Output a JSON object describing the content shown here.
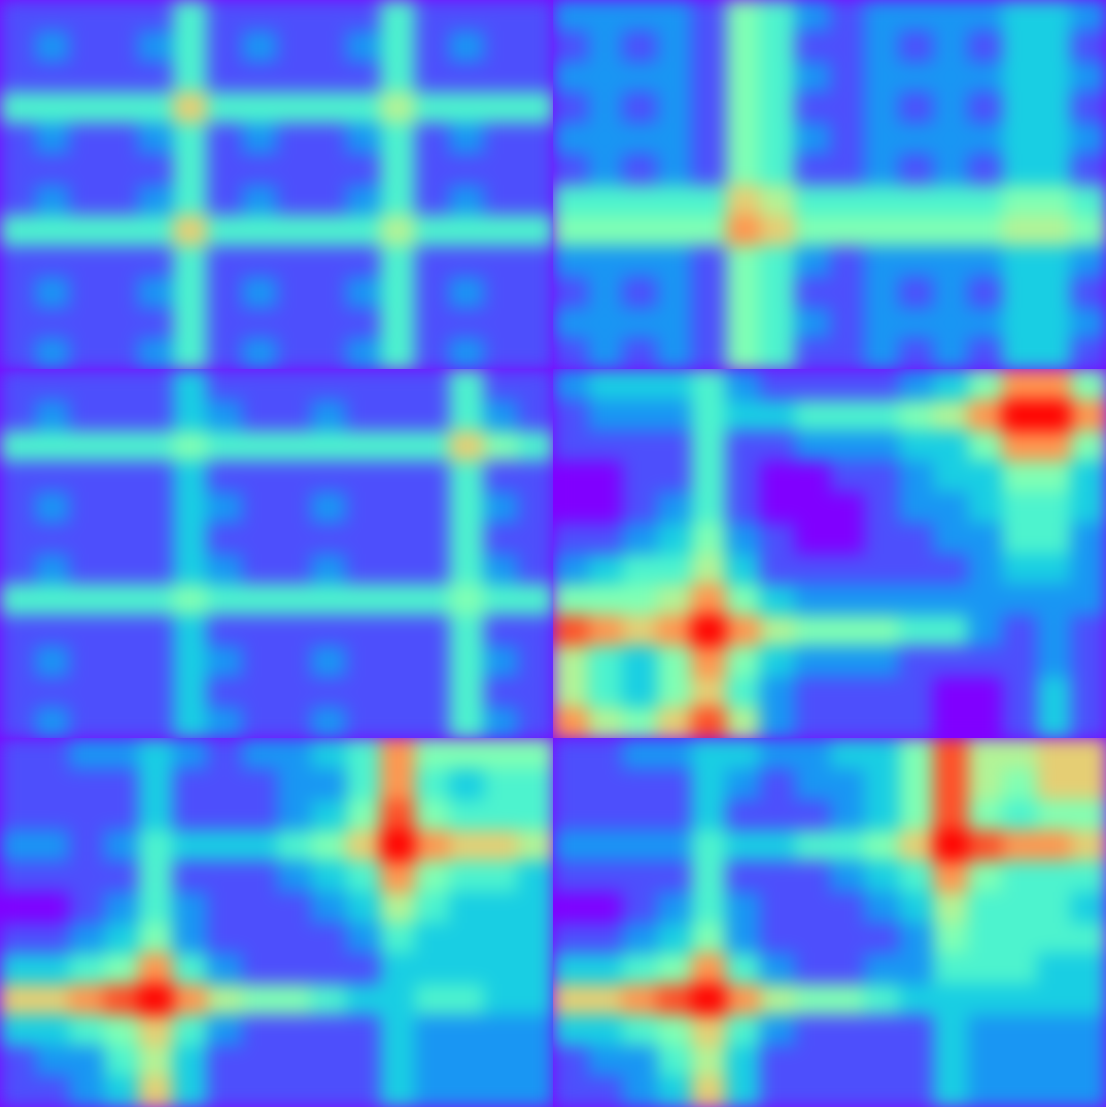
{
  "chart_data": [
    {
      "type": "heatmap",
      "tick_labels": false,
      "zlim": [
        0,
        10
      ],
      "values": [
        [
          1,
          1,
          1,
          1,
          1,
          4,
          1,
          1,
          1,
          1,
          1,
          4,
          1,
          1,
          1,
          1
        ],
        [
          1,
          2,
          1,
          1,
          2,
          4,
          1,
          2,
          1,
          1,
          2,
          4,
          1,
          2,
          1,
          1
        ],
        [
          1,
          1,
          1,
          1,
          1,
          4,
          1,
          1,
          1,
          1,
          1,
          4,
          1,
          1,
          1,
          1
        ],
        [
          4,
          4,
          4,
          4,
          4,
          7,
          4,
          4,
          4,
          4,
          4,
          6,
          4,
          4,
          4,
          4
        ],
        [
          1,
          2,
          1,
          1,
          2,
          4,
          1,
          2,
          1,
          1,
          2,
          4,
          1,
          2,
          1,
          1
        ],
        [
          1,
          1,
          1,
          1,
          1,
          4,
          1,
          1,
          1,
          1,
          1,
          4,
          1,
          1,
          1,
          1
        ],
        [
          1,
          2,
          1,
          1,
          2,
          4,
          1,
          2,
          1,
          1,
          2,
          4,
          1,
          2,
          1,
          1
        ],
        [
          4,
          4,
          4,
          4,
          4,
          7,
          4,
          4,
          4,
          4,
          4,
          6,
          4,
          4,
          4,
          4
        ],
        [
          1,
          1,
          1,
          1,
          1,
          4,
          1,
          1,
          1,
          1,
          1,
          4,
          1,
          1,
          1,
          1
        ],
        [
          1,
          2,
          1,
          1,
          2,
          4,
          1,
          2,
          1,
          1,
          2,
          4,
          1,
          2,
          1,
          1
        ],
        [
          1,
          1,
          1,
          1,
          1,
          4,
          1,
          1,
          1,
          1,
          1,
          4,
          1,
          1,
          1,
          1
        ],
        [
          1,
          2,
          1,
          1,
          2,
          4,
          1,
          2,
          1,
          1,
          2,
          4,
          1,
          2,
          1,
          1
        ]
      ]
    },
    {
      "type": "heatmap",
      "tick_labels": false,
      "zlim": [
        0,
        10
      ],
      "values": [
        [
          2,
          2,
          2,
          2,
          1,
          5,
          4,
          2,
          1,
          2,
          2,
          2,
          2,
          3,
          3,
          2
        ],
        [
          1,
          2,
          1,
          2,
          1,
          5,
          4,
          1,
          1,
          2,
          1,
          2,
          1,
          3,
          3,
          1
        ],
        [
          2,
          2,
          2,
          2,
          1,
          5,
          4,
          2,
          1,
          2,
          2,
          2,
          2,
          3,
          3,
          2
        ],
        [
          1,
          2,
          1,
          2,
          1,
          5,
          4,
          1,
          1,
          2,
          1,
          2,
          1,
          3,
          3,
          1
        ],
        [
          2,
          2,
          2,
          2,
          1,
          5,
          4,
          2,
          1,
          2,
          2,
          2,
          2,
          3,
          3,
          2
        ],
        [
          1,
          2,
          1,
          2,
          1,
          5,
          4,
          1,
          1,
          2,
          1,
          2,
          1,
          3,
          3,
          1
        ],
        [
          4,
          4,
          4,
          4,
          4,
          7,
          6,
          4,
          4,
          4,
          4,
          4,
          4,
          5,
          5,
          4
        ],
        [
          5,
          5,
          5,
          5,
          5,
          8,
          7,
          5,
          5,
          5,
          5,
          5,
          5,
          6,
          6,
          5
        ],
        [
          2,
          2,
          2,
          2,
          1,
          5,
          4,
          2,
          1,
          2,
          2,
          2,
          2,
          3,
          3,
          2
        ],
        [
          1,
          2,
          1,
          2,
          1,
          5,
          4,
          1,
          1,
          2,
          1,
          2,
          1,
          3,
          3,
          1
        ],
        [
          2,
          2,
          2,
          2,
          1,
          5,
          4,
          2,
          1,
          2,
          2,
          2,
          2,
          3,
          3,
          2
        ],
        [
          1,
          2,
          1,
          2,
          1,
          5,
          4,
          1,
          1,
          2,
          1,
          2,
          1,
          3,
          3,
          1
        ]
      ]
    },
    {
      "type": "heatmap",
      "tick_labels": false,
      "zlim": [
        0,
        10
      ],
      "values": [
        [
          1,
          1,
          1,
          1,
          1,
          3,
          1,
          1,
          1,
          1,
          1,
          1,
          1,
          4,
          1,
          1
        ],
        [
          1,
          2,
          1,
          1,
          1,
          3,
          2,
          1,
          1,
          2,
          1,
          1,
          1,
          4,
          2,
          1
        ],
        [
          4,
          4,
          4,
          4,
          4,
          5,
          4,
          4,
          4,
          4,
          4,
          4,
          4,
          7,
          5,
          4
        ],
        [
          1,
          1,
          1,
          1,
          1,
          3,
          1,
          1,
          1,
          1,
          1,
          1,
          1,
          4,
          1,
          1
        ],
        [
          1,
          2,
          1,
          1,
          1,
          3,
          2,
          1,
          1,
          2,
          1,
          1,
          1,
          4,
          2,
          1
        ],
        [
          1,
          1,
          1,
          1,
          1,
          3,
          1,
          1,
          1,
          1,
          1,
          1,
          1,
          4,
          1,
          1
        ],
        [
          1,
          2,
          1,
          1,
          1,
          3,
          2,
          1,
          1,
          2,
          1,
          1,
          1,
          4,
          2,
          1
        ],
        [
          4,
          4,
          4,
          4,
          4,
          5,
          4,
          4,
          4,
          4,
          4,
          4,
          4,
          5,
          4,
          4
        ],
        [
          1,
          1,
          1,
          1,
          1,
          3,
          1,
          1,
          1,
          1,
          1,
          1,
          1,
          4,
          1,
          1
        ],
        [
          1,
          2,
          1,
          1,
          1,
          3,
          2,
          1,
          1,
          2,
          1,
          1,
          1,
          4,
          2,
          1
        ],
        [
          1,
          1,
          1,
          1,
          1,
          3,
          1,
          1,
          1,
          1,
          1,
          1,
          1,
          4,
          1,
          1
        ],
        [
          1,
          2,
          1,
          1,
          1,
          3,
          2,
          1,
          1,
          2,
          1,
          1,
          1,
          4,
          2,
          1
        ]
      ]
    },
    {
      "type": "heatmap",
      "tick_labels": false,
      "zlim": [
        0,
        10
      ],
      "values": [
        [
          2,
          3,
          3,
          3,
          4,
          2,
          1,
          1,
          1,
          1,
          2,
          3,
          5,
          8,
          8,
          5
        ],
        [
          1,
          2,
          2,
          2,
          4,
          3,
          3,
          4,
          4,
          4,
          5,
          6,
          8,
          10,
          10,
          8
        ],
        [
          1,
          1,
          1,
          1,
          4,
          1,
          1,
          2,
          2,
          2,
          3,
          3,
          5,
          8,
          8,
          5
        ],
        [
          0,
          0,
          1,
          1,
          4,
          1,
          0,
          0,
          1,
          1,
          2,
          3,
          3,
          5,
          5,
          3
        ],
        [
          0,
          0,
          1,
          2,
          4,
          1,
          0,
          0,
          0,
          1,
          2,
          2,
          3,
          4,
          4,
          3
        ],
        [
          1,
          1,
          2,
          3,
          5,
          2,
          1,
          0,
          0,
          1,
          1,
          2,
          2,
          4,
          4,
          2
        ],
        [
          2,
          3,
          4,
          4,
          6,
          3,
          1,
          1,
          1,
          1,
          1,
          1,
          2,
          3,
          3,
          2
        ],
        [
          5,
          5,
          5,
          6,
          8,
          5,
          3,
          2,
          2,
          2,
          2,
          2,
          2,
          2,
          2,
          2
        ],
        [
          9,
          8,
          7,
          8,
          10,
          8,
          6,
          5,
          5,
          5,
          4,
          4,
          2,
          1,
          2,
          1
        ],
        [
          6,
          4,
          3,
          5,
          8,
          5,
          3,
          2,
          2,
          2,
          1,
          1,
          1,
          1,
          2,
          1
        ],
        [
          6,
          4,
          3,
          5,
          7,
          4,
          2,
          1,
          1,
          1,
          1,
          0,
          0,
          1,
          3,
          1
        ],
        [
          8,
          6,
          5,
          7,
          9,
          6,
          2,
          1,
          1,
          1,
          1,
          0,
          0,
          1,
          3,
          1
        ]
      ]
    },
    {
      "type": "heatmap",
      "tick_labels": false,
      "zlim": [
        0,
        10
      ],
      "values": [
        [
          1,
          1,
          2,
          2,
          3,
          2,
          1,
          2,
          2,
          3,
          4,
          8,
          5,
          5,
          5,
          5
        ],
        [
          1,
          1,
          1,
          1,
          3,
          1,
          1,
          1,
          2,
          2,
          4,
          8,
          4,
          3,
          4,
          4
        ],
        [
          1,
          1,
          1,
          1,
          3,
          1,
          1,
          1,
          2,
          3,
          5,
          9,
          5,
          4,
          4,
          4
        ],
        [
          2,
          2,
          1,
          2,
          4,
          3,
          3,
          3,
          4,
          5,
          7,
          10,
          8,
          7,
          7,
          6
        ],
        [
          1,
          1,
          1,
          1,
          4,
          1,
          1,
          1,
          2,
          3,
          4,
          8,
          5,
          4,
          4,
          3
        ],
        [
          0,
          0,
          1,
          2,
          4,
          2,
          1,
          1,
          1,
          2,
          3,
          6,
          4,
          3,
          3,
          3
        ],
        [
          1,
          1,
          2,
          3,
          5,
          2,
          1,
          1,
          1,
          1,
          2,
          4,
          3,
          3,
          3,
          3
        ],
        [
          3,
          3,
          4,
          5,
          8,
          4,
          2,
          1,
          1,
          1,
          1,
          3,
          3,
          3,
          3,
          3
        ],
        [
          7,
          7,
          8,
          9,
          10,
          8,
          6,
          5,
          5,
          4,
          3,
          3,
          4,
          4,
          3,
          3
        ],
        [
          3,
          3,
          4,
          5,
          7,
          4,
          2,
          1,
          1,
          1,
          1,
          3,
          2,
          2,
          2,
          2
        ],
        [
          1,
          2,
          2,
          4,
          6,
          3,
          1,
          1,
          1,
          1,
          1,
          3,
          2,
          2,
          2,
          2
        ],
        [
          1,
          1,
          2,
          3,
          7,
          3,
          1,
          1,
          1,
          1,
          1,
          3,
          2,
          2,
          2,
          2
        ]
      ]
    },
    {
      "type": "heatmap",
      "tick_labels": false,
      "zlim": [
        0,
        10
      ],
      "values": [
        [
          1,
          1,
          2,
          2,
          3,
          3,
          2,
          2,
          3,
          3,
          5,
          9,
          6,
          6,
          7,
          7
        ],
        [
          1,
          1,
          1,
          1,
          3,
          2,
          1,
          2,
          2,
          3,
          5,
          9,
          6,
          5,
          7,
          7
        ],
        [
          1,
          1,
          1,
          1,
          3,
          1,
          1,
          1,
          2,
          3,
          5,
          9,
          5,
          4,
          5,
          5
        ],
        [
          2,
          2,
          2,
          2,
          4,
          3,
          3,
          4,
          4,
          5,
          7,
          10,
          9,
          8,
          8,
          7
        ],
        [
          1,
          1,
          1,
          1,
          4,
          1,
          1,
          1,
          2,
          3,
          4,
          8,
          5,
          4,
          4,
          4
        ],
        [
          0,
          0,
          1,
          2,
          4,
          2,
          1,
          1,
          1,
          2,
          3,
          6,
          4,
          4,
          4,
          3
        ],
        [
          1,
          1,
          2,
          3,
          5,
          2,
          1,
          1,
          1,
          1,
          2,
          5,
          4,
          4,
          4,
          4
        ],
        [
          3,
          3,
          4,
          5,
          8,
          4,
          2,
          1,
          1,
          2,
          2,
          4,
          4,
          4,
          3,
          3
        ],
        [
          7,
          7,
          8,
          9,
          10,
          8,
          6,
          5,
          5,
          4,
          3,
          3,
          3,
          3,
          3,
          3
        ],
        [
          3,
          3,
          4,
          5,
          7,
          4,
          2,
          1,
          1,
          1,
          1,
          3,
          2,
          2,
          2,
          2
        ],
        [
          1,
          2,
          2,
          4,
          6,
          3,
          1,
          1,
          1,
          1,
          1,
          3,
          2,
          2,
          2,
          2
        ],
        [
          1,
          1,
          2,
          3,
          7,
          3,
          1,
          1,
          1,
          1,
          1,
          3,
          2,
          2,
          2,
          2
        ]
      ]
    }
  ]
}
